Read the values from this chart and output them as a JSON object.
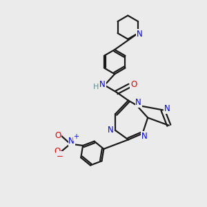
{
  "bg_color": "#ebebeb",
  "bond_color": "#1a1a1a",
  "N_color": "#0000ee",
  "O_color": "#ee0000",
  "H_color": "#5a9090",
  "lw": 1.6,
  "figsize": [
    3.0,
    3.0
  ],
  "dpi": 100,
  "xlim": [
    0,
    10
  ],
  "ylim": [
    0,
    10
  ]
}
